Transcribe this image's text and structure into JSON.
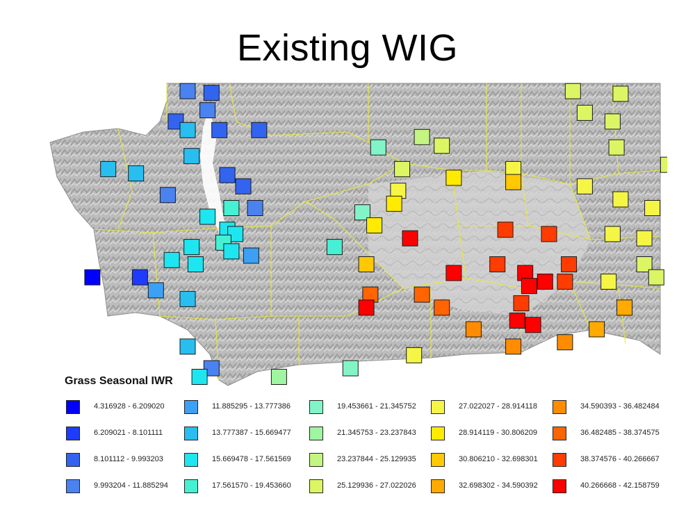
{
  "title": "Existing WIG",
  "legend": {
    "title": "Grass Seasonal IWR",
    "classes": [
      {
        "label": "4.316928 - 6.209020",
        "color": "#0000ff"
      },
      {
        "label": "6.209021 - 8.101111",
        "color": "#1e3cff"
      },
      {
        "label": "8.101112 - 9.993203",
        "color": "#3264f0"
      },
      {
        "label": "9.993204 - 11.885294",
        "color": "#4a82f0"
      },
      {
        "label": "11.885295 - 13.777386",
        "color": "#3ca0f5"
      },
      {
        "label": "13.777387 - 15.669477",
        "color": "#28bef0"
      },
      {
        "label": "15.669478 - 17.561569",
        "color": "#1ee6f0"
      },
      {
        "label": "17.561570 - 19.453660",
        "color": "#46f0d2"
      },
      {
        "label": "19.453661 - 21.345752",
        "color": "#82f5c8"
      },
      {
        "label": "21.345753 - 23.237843",
        "color": "#a0f5a0"
      },
      {
        "label": "23.237844 - 25.129935",
        "color": "#c3f582"
      },
      {
        "label": "25.129936 - 27.022026",
        "color": "#dcf564"
      },
      {
        "label": "27.022027 - 28.914118",
        "color": "#f5f546"
      },
      {
        "label": "28.914119 - 30.806209",
        "color": "#ffeb00"
      },
      {
        "label": "30.806210 - 32.698301",
        "color": "#ffc800"
      },
      {
        "label": "32.698302 - 34.590392",
        "color": "#ffaa00"
      },
      {
        "label": "34.590393 - 36.482484",
        "color": "#ff8c00"
      },
      {
        "label": "36.482485 - 38.374575",
        "color": "#ff6400"
      },
      {
        "label": "38.374576 - 40.266667",
        "color": "#ff3c00"
      },
      {
        "label": "40.266668 - 42.158759",
        "color": "#ff0000"
      }
    ]
  },
  "stations": [
    {
      "lon": -122.85,
      "lat": 48.95,
      "class": 3
    },
    {
      "lon": -122.55,
      "lat": 48.93,
      "class": 2
    },
    {
      "lon": -122.6,
      "lat": 48.73,
      "class": 3
    },
    {
      "lon": -123.0,
      "lat": 48.6,
      "class": 2
    },
    {
      "lon": -122.85,
      "lat": 48.5,
      "class": 5
    },
    {
      "lon": -122.45,
      "lat": 48.5,
      "class": 2
    },
    {
      "lon": -121.95,
      "lat": 48.5,
      "class": 2
    },
    {
      "lon": -122.8,
      "lat": 48.2,
      "class": 5
    },
    {
      "lon": -123.85,
      "lat": 48.05,
      "class": 5
    },
    {
      "lon": -123.5,
      "lat": 48.0,
      "class": 5
    },
    {
      "lon": -122.35,
      "lat": 47.98,
      "class": 2
    },
    {
      "lon": -122.15,
      "lat": 47.85,
      "class": 2
    },
    {
      "lon": -123.1,
      "lat": 47.75,
      "class": 3
    },
    {
      "lon": -122.0,
      "lat": 47.6,
      "class": 3
    },
    {
      "lon": -122.6,
      "lat": 47.5,
      "class": 6
    },
    {
      "lon": -122.3,
      "lat": 47.6,
      "class": 7
    },
    {
      "lon": -122.35,
      "lat": 47.35,
      "class": 6
    },
    {
      "lon": -122.25,
      "lat": 47.3,
      "class": 6
    },
    {
      "lon": -122.8,
      "lat": 47.15,
      "class": 6
    },
    {
      "lon": -122.4,
      "lat": 47.2,
      "class": 7
    },
    {
      "lon": -122.3,
      "lat": 47.1,
      "class": 6
    },
    {
      "lon": -123.05,
      "lat": 47.0,
      "class": 6
    },
    {
      "lon": -122.75,
      "lat": 46.95,
      "class": 6
    },
    {
      "lon": -122.05,
      "lat": 47.05,
      "class": 4
    },
    {
      "lon": -124.05,
      "lat": 46.8,
      "class": 0
    },
    {
      "lon": -123.45,
      "lat": 46.8,
      "class": 1
    },
    {
      "lon": -123.25,
      "lat": 46.65,
      "class": 4
    },
    {
      "lon": -122.85,
      "lat": 46.55,
      "class": 5
    },
    {
      "lon": -122.85,
      "lat": 46.0,
      "class": 5
    },
    {
      "lon": -122.55,
      "lat": 45.75,
      "class": 3
    },
    {
      "lon": -122.7,
      "lat": 45.65,
      "class": 6
    },
    {
      "lon": -120.45,
      "lat": 48.3,
      "class": 8
    },
    {
      "lon": -119.9,
      "lat": 48.42,
      "class": 10
    },
    {
      "lon": -119.65,
      "lat": 48.32,
      "class": 11
    },
    {
      "lon": -120.65,
      "lat": 47.55,
      "class": 8
    },
    {
      "lon": -121.0,
      "lat": 47.15,
      "class": 7
    },
    {
      "lon": -120.15,
      "lat": 48.05,
      "class": 11
    },
    {
      "lon": -120.2,
      "lat": 47.8,
      "class": 12
    },
    {
      "lon": -120.25,
      "lat": 47.65,
      "class": 13
    },
    {
      "lon": -119.5,
      "lat": 47.95,
      "class": 13
    },
    {
      "lon": -118.75,
      "lat": 48.05,
      "class": 12
    },
    {
      "lon": -118.75,
      "lat": 47.9,
      "class": 14
    },
    {
      "lon": -120.5,
      "lat": 47.4,
      "class": 13
    },
    {
      "lon": -120.05,
      "lat": 47.25,
      "class": 19
    },
    {
      "lon": -120.6,
      "lat": 46.95,
      "class": 14
    },
    {
      "lon": -120.55,
      "lat": 46.6,
      "class": 17
    },
    {
      "lon": -120.6,
      "lat": 46.45,
      "class": 19
    },
    {
      "lon": -119.9,
      "lat": 46.6,
      "class": 17
    },
    {
      "lon": -119.65,
      "lat": 46.45,
      "class": 17
    },
    {
      "lon": -119.25,
      "lat": 46.2,
      "class": 16
    },
    {
      "lon": -119.5,
      "lat": 46.85,
      "class": 19
    },
    {
      "lon": -118.85,
      "lat": 47.35,
      "class": 18
    },
    {
      "lon": -118.3,
      "lat": 47.3,
      "class": 18
    },
    {
      "lon": -118.95,
      "lat": 46.95,
      "class": 18
    },
    {
      "lon": -118.6,
      "lat": 46.85,
      "class": 19
    },
    {
      "lon": -118.55,
      "lat": 46.7,
      "class": 19
    },
    {
      "lon": -118.35,
      "lat": 46.75,
      "class": 19
    },
    {
      "lon": -118.1,
      "lat": 46.75,
      "class": 18
    },
    {
      "lon": -118.05,
      "lat": 46.95,
      "class": 18
    },
    {
      "lon": -118.65,
      "lat": 46.5,
      "class": 18
    },
    {
      "lon": -118.7,
      "lat": 46.3,
      "class": 19
    },
    {
      "lon": -118.5,
      "lat": 46.25,
      "class": 19
    },
    {
      "lon": -118.75,
      "lat": 46.0,
      "class": 16
    },
    {
      "lon": -120.0,
      "lat": 45.9,
      "class": 12
    },
    {
      "lon": -120.8,
      "lat": 45.75,
      "class": 8
    },
    {
      "lon": -121.7,
      "lat": 45.65,
      "class": 9
    },
    {
      "lon": -118.0,
      "lat": 48.95,
      "class": 11
    },
    {
      "lon": -117.85,
      "lat": 48.7,
      "class": 11
    },
    {
      "lon": -117.4,
      "lat": 48.92,
      "class": 11
    },
    {
      "lon": -117.5,
      "lat": 48.6,
      "class": 11
    },
    {
      "lon": -117.45,
      "lat": 48.3,
      "class": 11
    },
    {
      "lon": -116.8,
      "lat": 48.1,
      "class": 11
    },
    {
      "lon": -117.85,
      "lat": 47.85,
      "class": 12
    },
    {
      "lon": -117.4,
      "lat": 47.7,
      "class": 12
    },
    {
      "lon": -117.0,
      "lat": 47.6,
      "class": 12
    },
    {
      "lon": -117.5,
      "lat": 47.3,
      "class": 12
    },
    {
      "lon": -117.1,
      "lat": 47.25,
      "class": 12
    },
    {
      "lon": -117.1,
      "lat": 46.95,
      "class": 11
    },
    {
      "lon": -116.95,
      "lat": 46.8,
      "class": 11
    },
    {
      "lon": -117.55,
      "lat": 46.75,
      "class": 12
    },
    {
      "lon": -117.35,
      "lat": 46.45,
      "class": 15
    },
    {
      "lon": -117.7,
      "lat": 46.2,
      "class": 15
    },
    {
      "lon": -118.1,
      "lat": 46.05,
      "class": 16
    }
  ]
}
